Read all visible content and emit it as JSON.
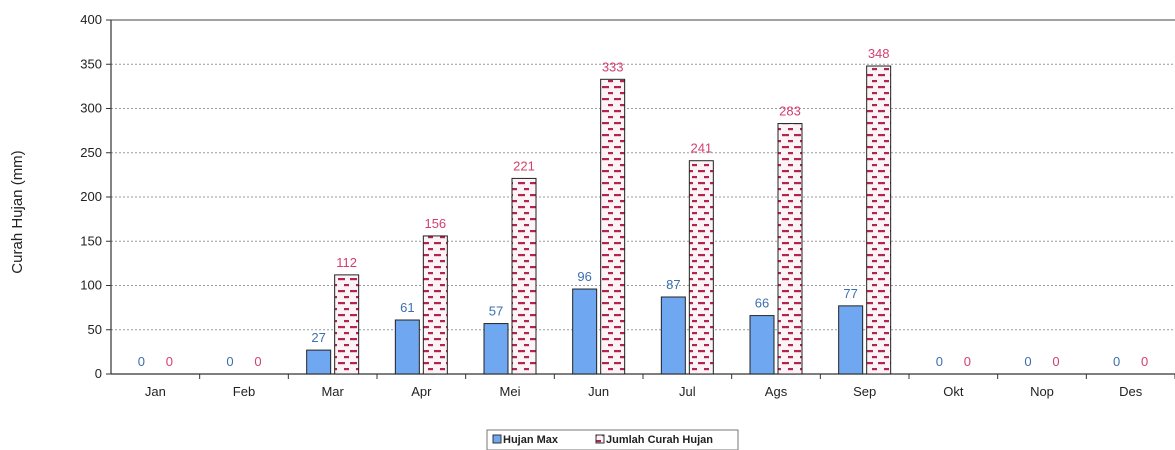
{
  "chart_data": {
    "type": "bar",
    "title": "",
    "xlabel": "",
    "ylabel": "Curah Hujan (mm)",
    "ylim": [
      0,
      400
    ],
    "yticks": [
      0,
      50,
      100,
      150,
      200,
      250,
      300,
      350,
      400
    ],
    "grid": true,
    "legend_position": "bottom",
    "categories": [
      "Jan",
      "Feb",
      "Mar",
      "Apr",
      "Mei",
      "Jun",
      "Jul",
      "Ags",
      "Sep",
      "Okt",
      "Nop",
      "Des"
    ],
    "series": [
      {
        "name": "Hujan Max",
        "values": [
          0,
          0,
          27,
          61,
          57,
          96,
          87,
          66,
          77,
          0,
          0,
          0
        ],
        "color": "#6fa8f0",
        "label_color": "#3b6fb0"
      },
      {
        "name": "Jumlah Curah Hujan",
        "values": [
          0,
          0,
          112,
          156,
          221,
          333,
          241,
          283,
          348,
          0,
          0,
          0
        ],
        "color": "#b0244f",
        "label_color": "#d3406e",
        "pattern": "dashes"
      }
    ]
  }
}
